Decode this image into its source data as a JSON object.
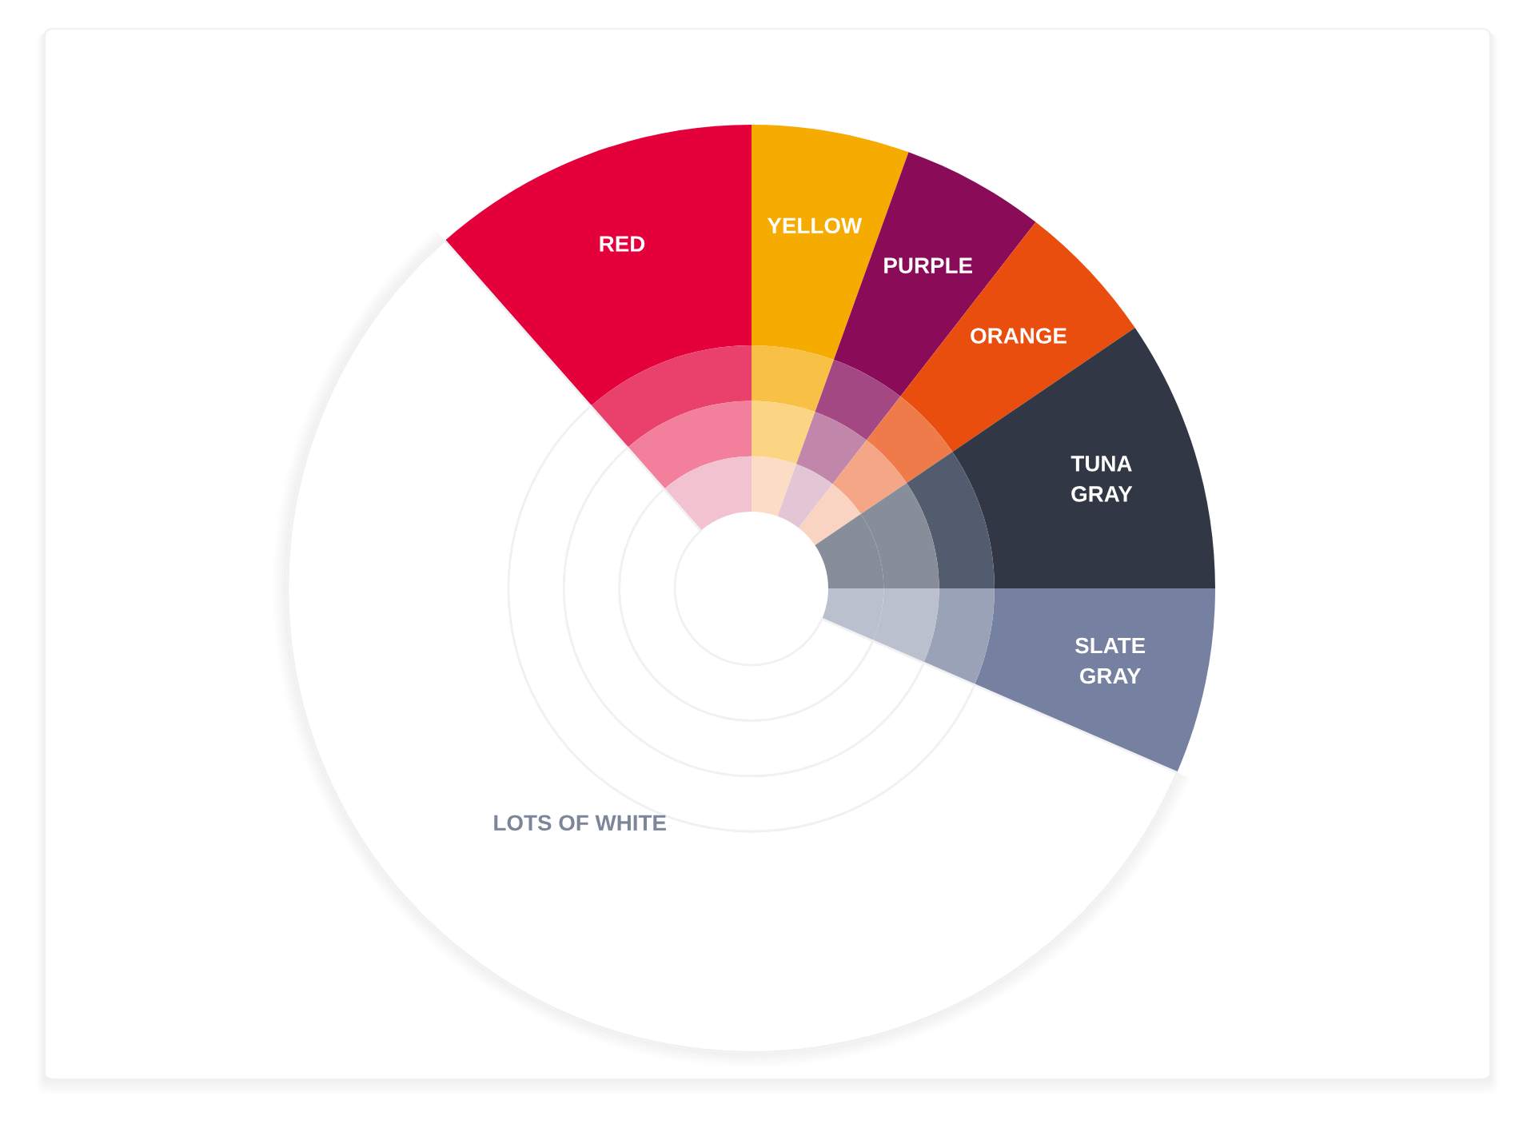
{
  "chart_data": {
    "type": "donut",
    "categories": [
      "RED",
      "YELLOW",
      "PURPLE",
      "ORANGE",
      "TUNA\nGRAY",
      "SLATE\nGRAY",
      "LOTS OF WHITE"
    ],
    "series": [
      {
        "values": [
          11.5,
          5.5,
          5,
          5,
          9.5,
          6.5,
          57
        ],
        "colors": [
          "#e4003a",
          "#f6ab00",
          "#8a0c58",
          "#e94e0f",
          "#323745",
          "#7680a0",
          "#ffffff"
        ]
      },
      {
        "values": [
          11.5,
          5.5,
          5,
          5,
          9.5,
          6.5,
          57
        ],
        "colors": [
          "#ea416c",
          "#f9c046",
          "#a44883",
          "#ef7a4a",
          "#535c6f",
          "#9aa2b7",
          "#ffffff"
        ]
      },
      {
        "values": [
          11.5,
          5.5,
          5,
          5,
          9.5,
          6.5,
          57
        ],
        "colors": [
          "#f2809c",
          "#fbd583",
          "#c386ab",
          "#f4a686",
          "#878e9a",
          "#bac0cd",
          "#ffffff"
        ]
      },
      {
        "values": [
          11.5,
          5.5,
          5,
          5,
          9.5,
          6.5,
          57
        ],
        "colors": [
          "#f2c2d0",
          "#fcdcc4",
          "#e3c6d6",
          "#f9d4c3",
          "#878e9a",
          "#bac0cd",
          "#ffffff"
        ]
      }
    ]
  }
}
